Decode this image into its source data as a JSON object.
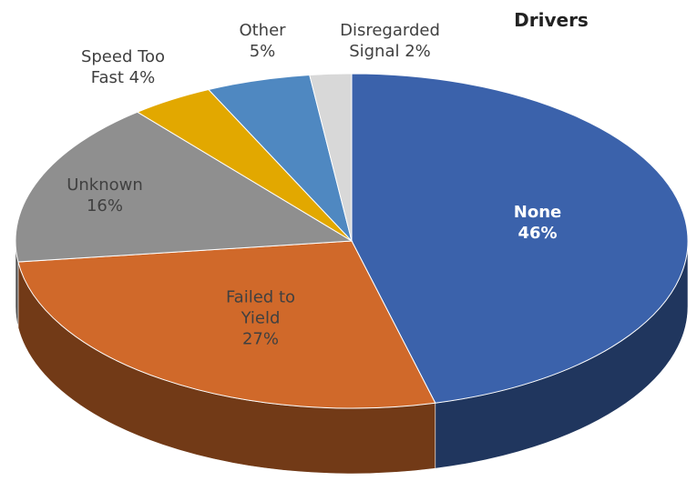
{
  "chart_data": {
    "type": "pie3d",
    "title": "Drivers",
    "categories": [
      "None",
      "Failed to Yield",
      "Unknown",
      "Speed Too Fast",
      "Other",
      "Disregarded Signal"
    ],
    "values": [
      46,
      27,
      16,
      4,
      5,
      2
    ],
    "value_labels": [
      "46%",
      "27%",
      "16%",
      "4%",
      "5%",
      "2%"
    ],
    "colors": [
      "#3b62ab",
      "#d0692a",
      "#8f8f8f",
      "#e2a800",
      "#4f88c1",
      "#d8d8d8"
    ]
  }
}
